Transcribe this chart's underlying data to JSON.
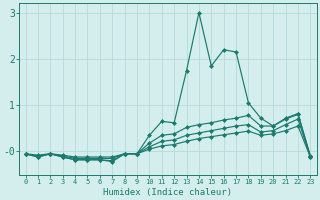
{
  "x": [
    0,
    1,
    2,
    3,
    4,
    5,
    6,
    7,
    8,
    9,
    10,
    11,
    12,
    13,
    14,
    15,
    16,
    17,
    18,
    19,
    20,
    21,
    22,
    23
  ],
  "line1": [
    -0.05,
    -0.12,
    -0.05,
    -0.12,
    -0.18,
    -0.18,
    -0.18,
    -0.22,
    -0.05,
    -0.05,
    0.35,
    0.65,
    0.62,
    1.75,
    3.0,
    1.85,
    2.2,
    2.15,
    1.05,
    0.72,
    0.55,
    0.72,
    0.82,
    -0.1
  ],
  "line2": [
    -0.05,
    -0.12,
    -0.05,
    -0.12,
    -0.18,
    -0.18,
    -0.18,
    -0.2,
    -0.05,
    -0.05,
    0.18,
    0.35,
    0.38,
    0.52,
    0.58,
    0.62,
    0.68,
    0.72,
    0.78,
    0.55,
    0.55,
    0.7,
    0.8,
    -0.1
  ],
  "line3": [
    -0.05,
    -0.1,
    -0.05,
    -0.1,
    -0.15,
    -0.15,
    -0.15,
    -0.15,
    -0.05,
    -0.05,
    0.1,
    0.22,
    0.25,
    0.35,
    0.4,
    0.45,
    0.5,
    0.55,
    0.58,
    0.42,
    0.45,
    0.58,
    0.7,
    -0.12
  ],
  "line4": [
    -0.05,
    -0.08,
    -0.05,
    -0.08,
    -0.12,
    -0.12,
    -0.12,
    -0.12,
    -0.05,
    -0.05,
    0.05,
    0.12,
    0.15,
    0.22,
    0.28,
    0.32,
    0.36,
    0.4,
    0.44,
    0.35,
    0.38,
    0.45,
    0.55,
    -0.12
  ],
  "line_color": "#1a7a6e",
  "bg_color": "#d4eeee",
  "grid_color": "#b8d8d8",
  "xlabel": "Humidex (Indice chaleur)",
  "xlim": [
    -0.5,
    23.5
  ],
  "ylim": [
    -0.5,
    3.2
  ],
  "yticks": [
    0,
    1,
    2,
    3
  ],
  "ytick_labels": [
    "-0",
    "1",
    "2",
    "3"
  ],
  "xticks": [
    0,
    1,
    2,
    3,
    4,
    5,
    6,
    7,
    8,
    9,
    10,
    11,
    12,
    13,
    14,
    15,
    16,
    17,
    18,
    19,
    20,
    21,
    22,
    23
  ],
  "markersize": 2.5,
  "lw": 0.85
}
